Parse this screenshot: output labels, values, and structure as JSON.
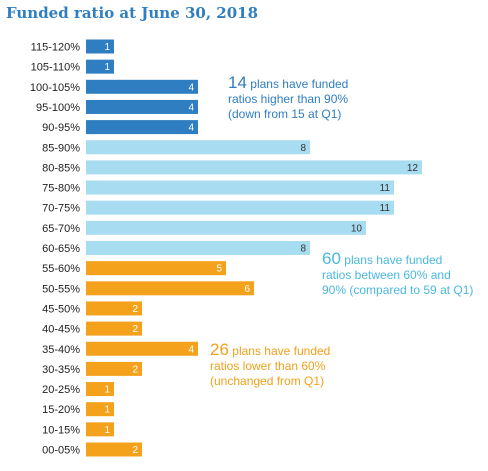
{
  "chart_data": {
    "type": "bar",
    "orientation": "horizontal",
    "title": "Funded ratio at June 30, 2018",
    "categories": [
      "115-120%",
      "105-110%",
      "100-105%",
      "95-100%",
      "90-95%",
      "85-90%",
      "80-85%",
      "75-80%",
      "70-75%",
      "65-70%",
      "60-65%",
      "55-60%",
      "50-55%",
      "45-50%",
      "40-45%",
      "35-40%",
      "30-35%",
      "20-25%",
      "15-20%",
      "10-15%",
      "00-05%"
    ],
    "values": [
      1,
      1,
      4,
      4,
      4,
      8,
      12,
      11,
      11,
      10,
      8,
      5,
      6,
      2,
      2,
      4,
      2,
      1,
      1,
      1,
      2
    ],
    "groups": [
      "high",
      "high",
      "high",
      "high",
      "high",
      "mid",
      "mid",
      "mid",
      "mid",
      "mid",
      "mid",
      "low",
      "low",
      "low",
      "low",
      "low",
      "low",
      "low",
      "low",
      "low",
      "low"
    ],
    "colors": {
      "high": "#2f7ec1",
      "mid": "#a8dcf1",
      "low": "#f4a11b"
    },
    "grid": false,
    "legend": "none",
    "annotations": {
      "high": {
        "count": "14",
        "lines": [
          "plans have funded",
          "ratios higher than 90%",
          "(down from 15 at Q1)"
        ]
      },
      "mid": {
        "count": "60",
        "lines": [
          "plans have funded",
          "ratios between 60% and",
          "90% (compared to 59 at Q1)"
        ]
      },
      "low": {
        "count": "26",
        "lines": [
          "plans have funded",
          "ratios lower than 60%",
          "(unchanged from Q1)"
        ]
      }
    }
  }
}
